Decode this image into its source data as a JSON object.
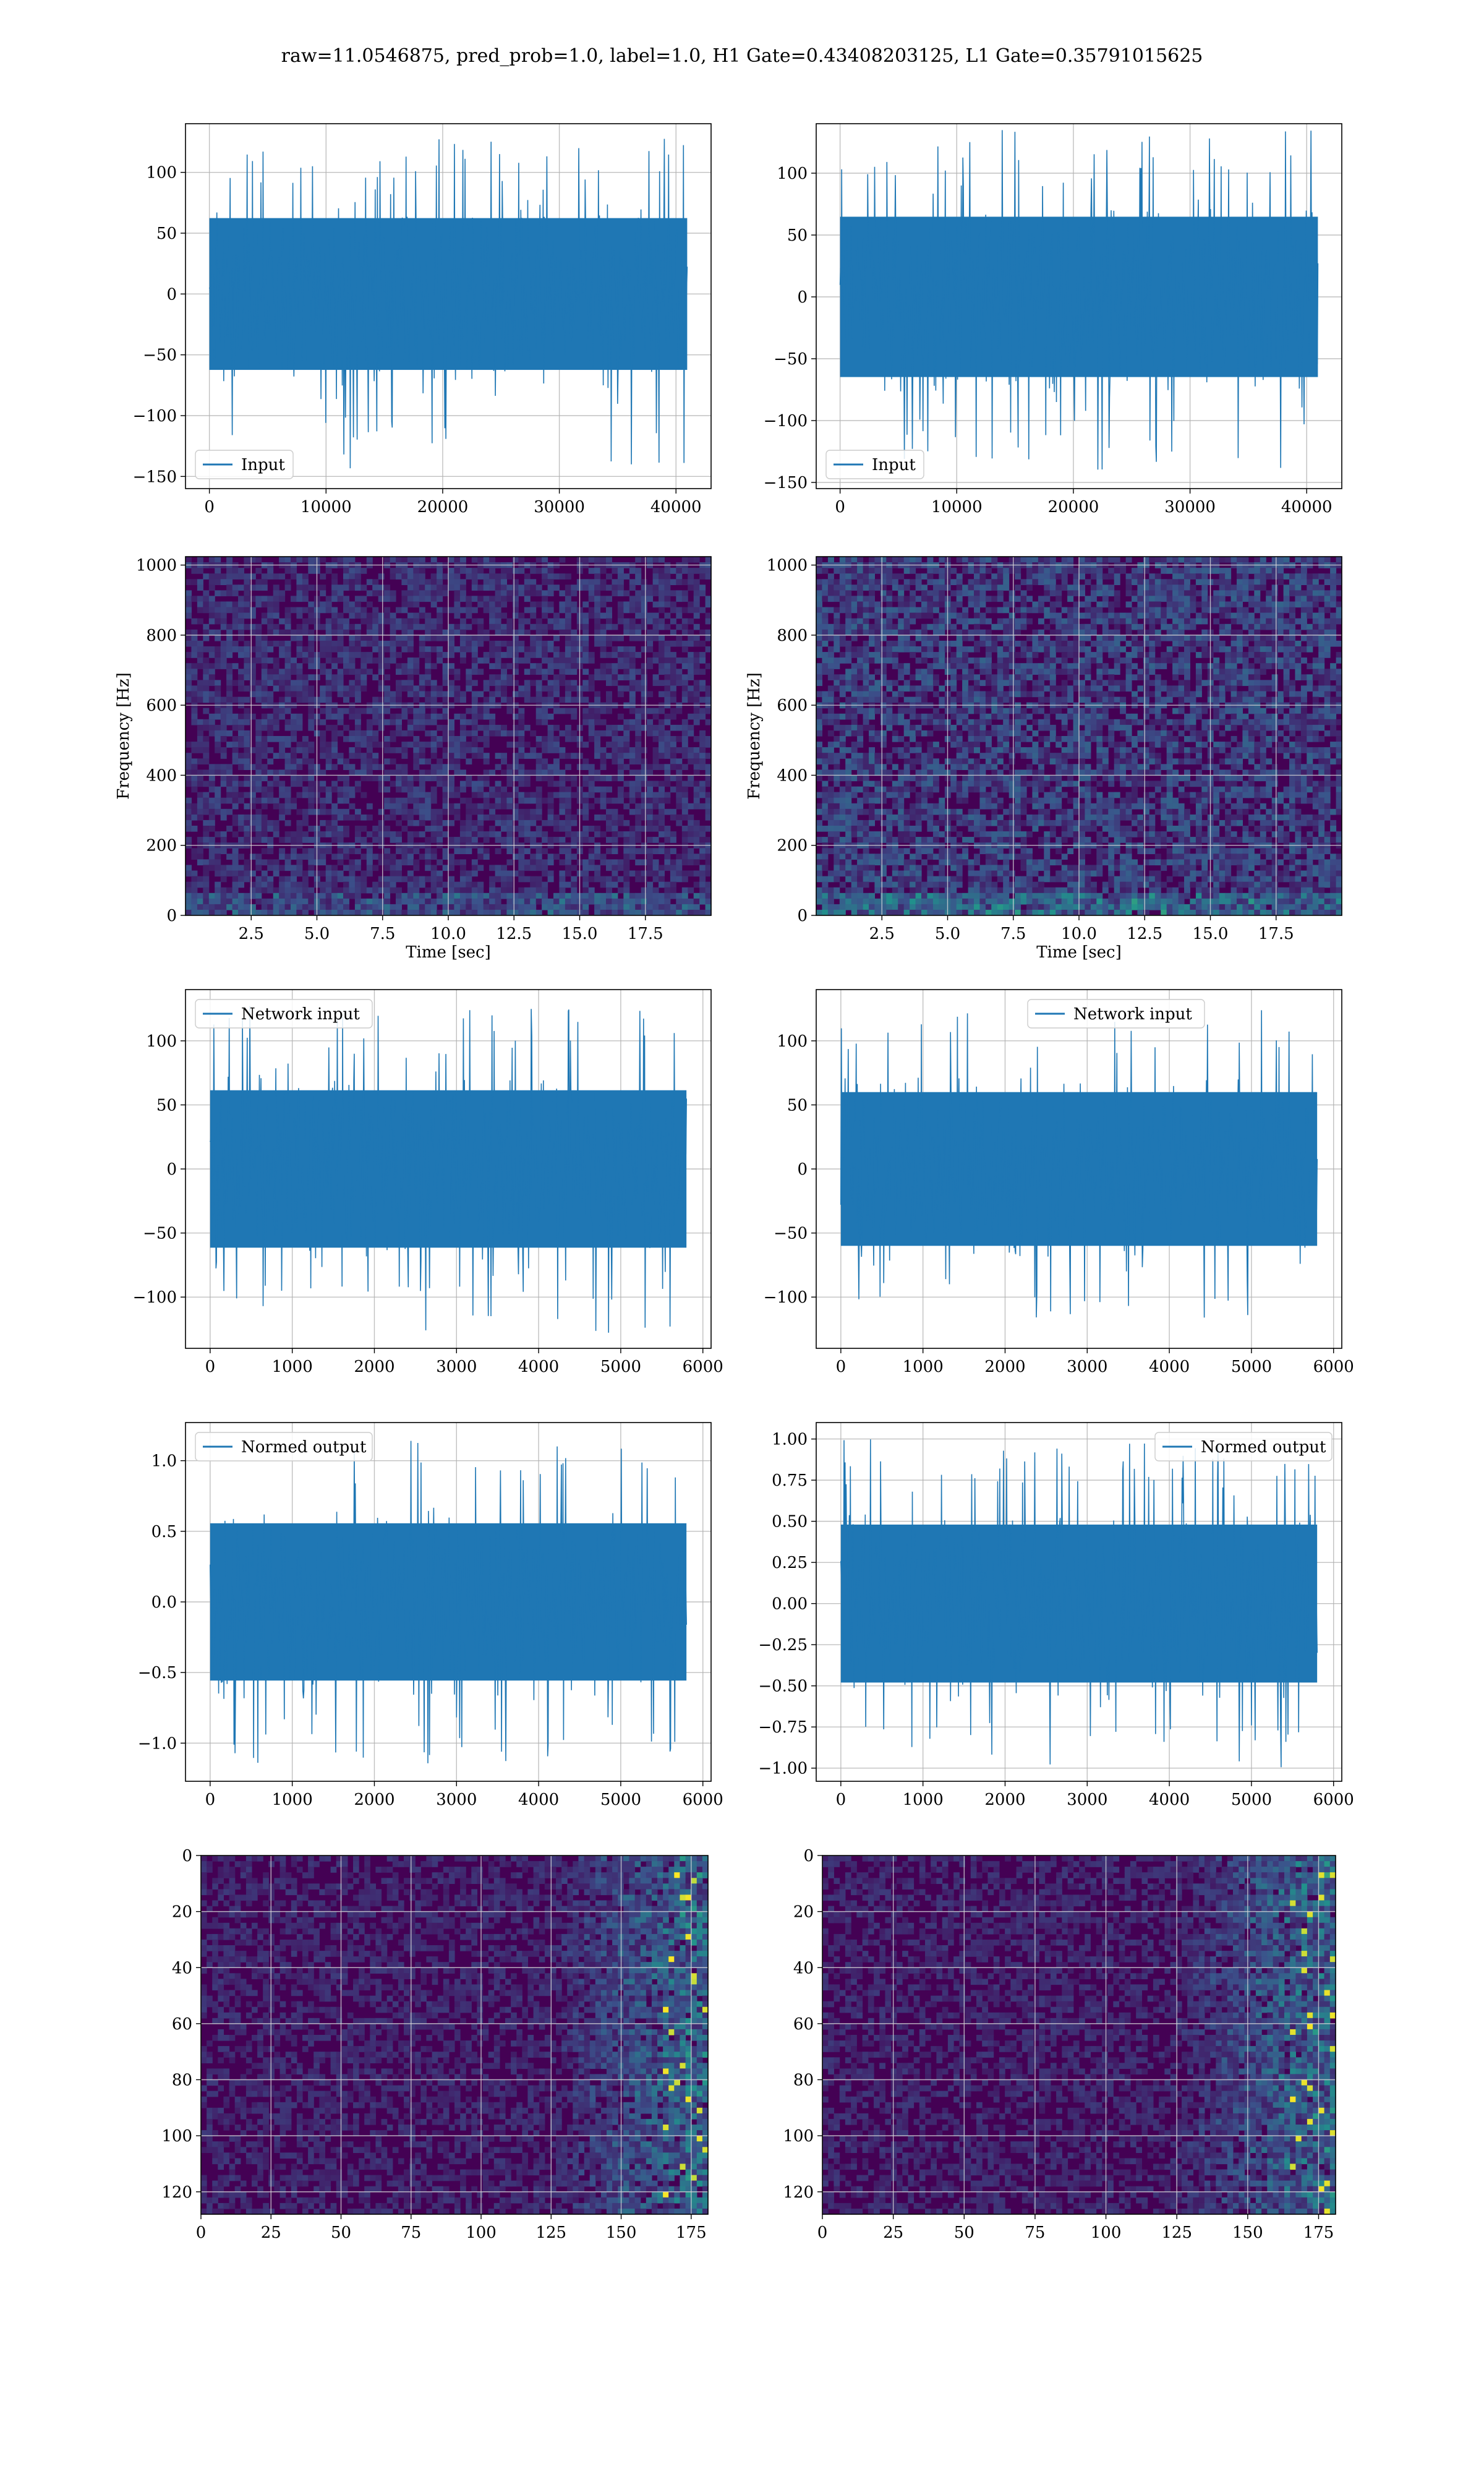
{
  "figure": {
    "suptitle": "raw=11.0546875, pred_prob=1.0, label=1.0, H1 Gate=0.43408203125, L1 Gate=0.35791015625"
  },
  "colors": {
    "line": "#1f77b4",
    "grid": "#b0b0b0",
    "viridis_low": "#440154",
    "viridis_mid": "#21918c",
    "viridis_high": "#fde725"
  },
  "chart_data": [
    {
      "id": "r0c0",
      "type": "line",
      "legend": "Input",
      "legend_loc": "lower-left",
      "x_range": [
        0,
        40960
      ],
      "xlim": [
        -2048,
        43008
      ],
      "ylim": [
        -160,
        140
      ],
      "xticks": [
        0,
        10000,
        20000,
        30000,
        40000
      ],
      "yticks": [
        -150,
        -100,
        -50,
        0,
        50,
        100
      ],
      "ytick_labels": [
        "−150",
        "−100",
        "−50",
        "0",
        "50",
        "100"
      ],
      "amplitude_range": [
        -145,
        130
      ],
      "grid": true
    },
    {
      "id": "r0c1",
      "type": "line",
      "legend": "Input",
      "legend_loc": "lower-left",
      "x_range": [
        0,
        40960
      ],
      "xlim": [
        -2048,
        43008
      ],
      "ylim": [
        -155,
        140
      ],
      "xticks": [
        0,
        10000,
        20000,
        30000,
        40000
      ],
      "yticks": [
        -150,
        -100,
        -50,
        0,
        50,
        100
      ],
      "ytick_labels": [
        "−150",
        "−100",
        "−50",
        "0",
        "50",
        "100"
      ],
      "amplitude_range": [
        -140,
        135
      ],
      "grid": true
    },
    {
      "id": "r1c0",
      "type": "heatmap",
      "xlabel": "Time [sec]",
      "ylabel": "Frequency [Hz]",
      "xlim": [
        0,
        20
      ],
      "ylim": [
        0,
        1024
      ],
      "xticks": [
        2.5,
        5.0,
        7.5,
        10.0,
        12.5,
        15.0,
        17.5
      ],
      "yticks": [
        0,
        200,
        400,
        600,
        800,
        1000
      ],
      "xtick_labels": [
        "2.5",
        "5.0",
        "7.5",
        "10.0",
        "12.5",
        "15.0",
        "17.5"
      ],
      "colormap": "viridis",
      "grid": true
    },
    {
      "id": "r1c1",
      "type": "heatmap",
      "xlabel": "Time [sec]",
      "ylabel": "Frequency [Hz]",
      "xlim": [
        0,
        20
      ],
      "ylim": [
        0,
        1024
      ],
      "xticks": [
        2.5,
        5.0,
        7.5,
        10.0,
        12.5,
        15.0,
        17.5
      ],
      "yticks": [
        0,
        200,
        400,
        600,
        800,
        1000
      ],
      "xtick_labels": [
        "2.5",
        "5.0",
        "7.5",
        "10.0",
        "12.5",
        "15.0",
        "17.5"
      ],
      "colormap": "viridis",
      "grid": true
    },
    {
      "id": "r2c0",
      "type": "line",
      "legend": "Network input",
      "legend_loc": "upper-left",
      "x_range": [
        0,
        5800
      ],
      "xlim": [
        -300,
        6100
      ],
      "ylim": [
        -140,
        140
      ],
      "xticks": [
        0,
        1000,
        2000,
        3000,
        4000,
        5000,
        6000
      ],
      "yticks": [
        -100,
        -50,
        0,
        50,
        100
      ],
      "ytick_labels": [
        "−100",
        "−50",
        "0",
        "50",
        "100"
      ],
      "amplitude_range": [
        -128,
        128
      ],
      "grid": true
    },
    {
      "id": "r2c1",
      "type": "line",
      "legend": "Network input",
      "legend_loc": "upper-center",
      "x_range": [
        0,
        5800
      ],
      "xlim": [
        -300,
        6100
      ],
      "ylim": [
        -140,
        140
      ],
      "xticks": [
        0,
        1000,
        2000,
        3000,
        4000,
        5000,
        6000
      ],
      "yticks": [
        -100,
        -50,
        0,
        50,
        100
      ],
      "ytick_labels": [
        "−100",
        "−50",
        "0",
        "50",
        "100"
      ],
      "amplitude_range": [
        -122,
        125
      ],
      "grid": true
    },
    {
      "id": "r3c0",
      "type": "line",
      "legend": "Normed output",
      "legend_loc": "upper-left",
      "x_range": [
        0,
        5800
      ],
      "xlim": [
        -300,
        6100
      ],
      "ylim": [
        -1.27,
        1.27
      ],
      "xticks": [
        0,
        1000,
        2000,
        3000,
        4000,
        5000,
        6000
      ],
      "yticks": [
        -1.0,
        -0.5,
        0.0,
        0.5,
        1.0
      ],
      "ytick_labels": [
        "−1.0",
        "−0.5",
        "0.0",
        "0.5",
        "1.0"
      ],
      "amplitude_range": [
        -1.16,
        1.16
      ],
      "grid": true
    },
    {
      "id": "r3c1",
      "type": "line",
      "legend": "Normed output",
      "legend_loc": "upper-right",
      "x_range": [
        0,
        5800
      ],
      "xlim": [
        -300,
        6100
      ],
      "ylim": [
        -1.08,
        1.1
      ],
      "xticks": [
        0,
        1000,
        2000,
        3000,
        4000,
        5000,
        6000
      ],
      "yticks": [
        -1.0,
        -0.75,
        -0.5,
        -0.25,
        0.0,
        0.25,
        0.5,
        0.75,
        1.0
      ],
      "ytick_labels": [
        "−1.00",
        "−0.75",
        "−0.50",
        "−0.25",
        "0.00",
        "0.25",
        "0.50",
        "0.75",
        "1.00"
      ],
      "amplitude_range": [
        -1.0,
        1.0
      ],
      "grid": true
    },
    {
      "id": "r4c0",
      "type": "heatmap",
      "xlabel": "",
      "ylabel": "",
      "xlim": [
        0,
        181
      ],
      "ylim": [
        128,
        0
      ],
      "xticks": [
        0,
        25,
        50,
        75,
        100,
        125,
        150,
        175
      ],
      "yticks": [
        0,
        20,
        40,
        60,
        80,
        100,
        120
      ],
      "colormap": "viridis",
      "grid": true
    },
    {
      "id": "r4c1",
      "type": "heatmap",
      "xlabel": "",
      "ylabel": "",
      "xlim": [
        0,
        181
      ],
      "ylim": [
        128,
        0
      ],
      "xticks": [
        0,
        25,
        50,
        75,
        100,
        125,
        150,
        175
      ],
      "yticks": [
        0,
        20,
        40,
        60,
        80,
        100,
        120
      ],
      "colormap": "viridis",
      "grid": true
    }
  ]
}
